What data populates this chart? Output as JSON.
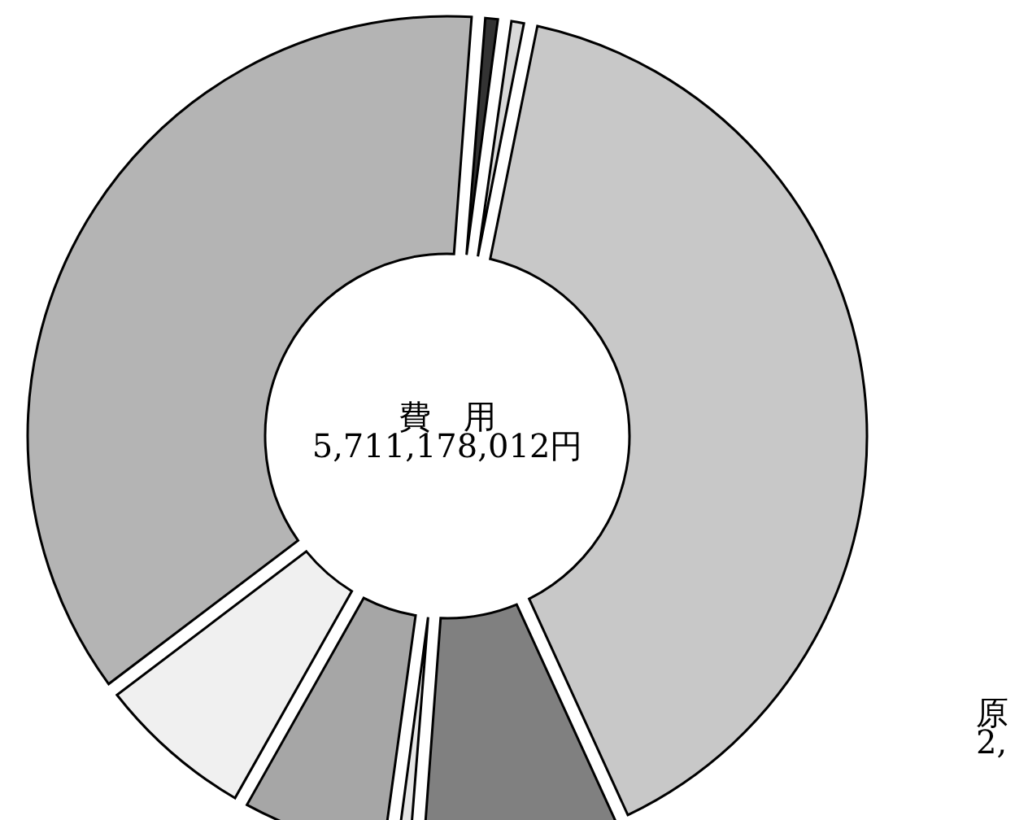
{
  "chart_data": {
    "type": "donut",
    "title": "費　用",
    "subtitle": "5,711,178,012円",
    "categories": [
      null,
      null,
      null,
      null,
      null,
      null,
      null,
      null
    ],
    "values": [
      40,
      8,
      1,
      6,
      6.5,
      36.5,
      1,
      1
    ],
    "colors": [
      "#c8c8c8",
      "#808080",
      "#e6e6e6",
      "#a6a6a6",
      "#f0f0f0",
      "#b4b4b4",
      "#333333",
      "#d9d9d9"
    ],
    "annotations": [
      "原",
      "2,"
    ]
  }
}
